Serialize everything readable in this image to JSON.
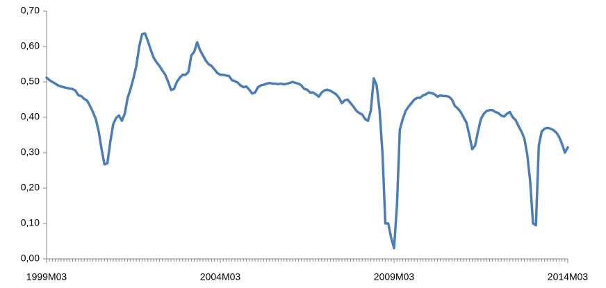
{
  "chart_data": {
    "type": "line",
    "categories": [
      "1999M03",
      null,
      null,
      null,
      null,
      null,
      null,
      null,
      null,
      null,
      null,
      null,
      null,
      null,
      null,
      null,
      null,
      null,
      null,
      null,
      null,
      null,
      null,
      null,
      null,
      null,
      null,
      null,
      null,
      null,
      null,
      null,
      null,
      null,
      null,
      null,
      null,
      null,
      null,
      null,
      null,
      null,
      null,
      null,
      null,
      null,
      null,
      null,
      null,
      null,
      null,
      null,
      null,
      null,
      null,
      null,
      null,
      null,
      null,
      null,
      "2004M03",
      null,
      null,
      null,
      null,
      null,
      null,
      null,
      null,
      null,
      null,
      null,
      null,
      null,
      null,
      null,
      null,
      null,
      null,
      null,
      null,
      null,
      null,
      null,
      null,
      null,
      null,
      null,
      null,
      null,
      null,
      null,
      null,
      null,
      null,
      null,
      null,
      null,
      null,
      null,
      null,
      null,
      null,
      null,
      null,
      null,
      null,
      null,
      null,
      null,
      null,
      null,
      null,
      null,
      null,
      null,
      null,
      null,
      null,
      null,
      "2009M03",
      null,
      null,
      null,
      null,
      null,
      null,
      null,
      null,
      null,
      null,
      null,
      null,
      null,
      null,
      null,
      null,
      null,
      null,
      null,
      null,
      null,
      null,
      null,
      null,
      null,
      null,
      null,
      null,
      null,
      null,
      null,
      null,
      null,
      null,
      null,
      null,
      null,
      null,
      null,
      null,
      null,
      null,
      null,
      null,
      null,
      null,
      null,
      null,
      null,
      null,
      null,
      null,
      null,
      null,
      null,
      null,
      null,
      null,
      null,
      "2014M03"
    ],
    "series": [
      {
        "color": "#4a7ebb",
        "values": [
          0.512,
          0.505,
          0.5,
          0.495,
          0.49,
          0.487,
          0.485,
          0.483,
          0.481,
          0.48,
          0.475,
          0.462,
          0.46,
          0.452,
          0.447,
          0.432,
          0.415,
          0.395,
          0.36,
          0.31,
          0.267,
          0.27,
          0.33,
          0.38,
          0.398,
          0.405,
          0.39,
          0.41,
          0.455,
          0.48,
          0.51,
          0.545,
          0.6,
          0.635,
          0.637,
          0.615,
          0.59,
          0.568,
          0.555,
          0.545,
          0.532,
          0.52,
          0.5,
          0.477,
          0.48,
          0.5,
          0.512,
          0.52,
          0.52,
          0.528,
          0.575,
          0.585,
          0.612,
          0.59,
          0.575,
          0.56,
          0.55,
          0.545,
          0.535,
          0.525,
          0.52,
          0.52,
          0.518,
          0.517,
          0.505,
          0.502,
          0.498,
          0.49,
          0.485,
          0.487,
          0.478,
          0.467,
          0.47,
          0.485,
          0.49,
          0.492,
          0.495,
          0.497,
          0.495,
          0.495,
          0.494,
          0.495,
          0.493,
          0.495,
          0.497,
          0.5,
          0.497,
          0.495,
          0.49,
          0.48,
          0.478,
          0.47,
          0.47,
          0.465,
          0.458,
          0.47,
          0.476,
          0.478,
          0.475,
          0.47,
          0.465,
          0.455,
          0.44,
          0.448,
          0.45,
          0.44,
          0.43,
          0.418,
          0.412,
          0.408,
          0.395,
          0.39,
          0.42,
          0.51,
          0.49,
          0.42,
          0.3,
          0.1,
          0.1,
          0.06,
          0.03,
          0.15,
          0.365,
          0.395,
          0.418,
          0.43,
          0.44,
          0.45,
          0.455,
          0.455,
          0.462,
          0.465,
          0.47,
          0.468,
          0.465,
          0.458,
          0.462,
          0.46,
          0.46,
          0.458,
          0.45,
          0.432,
          0.425,
          0.415,
          0.4,
          0.385,
          0.35,
          0.31,
          0.32,
          0.36,
          0.395,
          0.41,
          0.418,
          0.42,
          0.42,
          0.415,
          0.412,
          0.405,
          0.402,
          0.41,
          0.415,
          0.4,
          0.392,
          0.375,
          0.36,
          0.34,
          0.295,
          0.22,
          0.1,
          0.095,
          0.32,
          0.36,
          0.368,
          0.37,
          0.368,
          0.364,
          0.357,
          0.345,
          0.325,
          0.3,
          0.315
        ]
      }
    ],
    "ylim": [
      0,
      0.7
    ],
    "yticks": [
      {
        "value": 0,
        "label": "0,00"
      },
      {
        "value": 0.1,
        "label": "0,10"
      },
      {
        "value": 0.2,
        "label": "0,20"
      },
      {
        "value": 0.3,
        "label": "0,30"
      },
      {
        "value": 0.4,
        "label": "0,40"
      },
      {
        "value": 0.5,
        "label": "0,50"
      },
      {
        "value": 0.6,
        "label": "0,60"
      },
      {
        "value": 0.7,
        "label": "0,70"
      }
    ],
    "grid": false
  }
}
